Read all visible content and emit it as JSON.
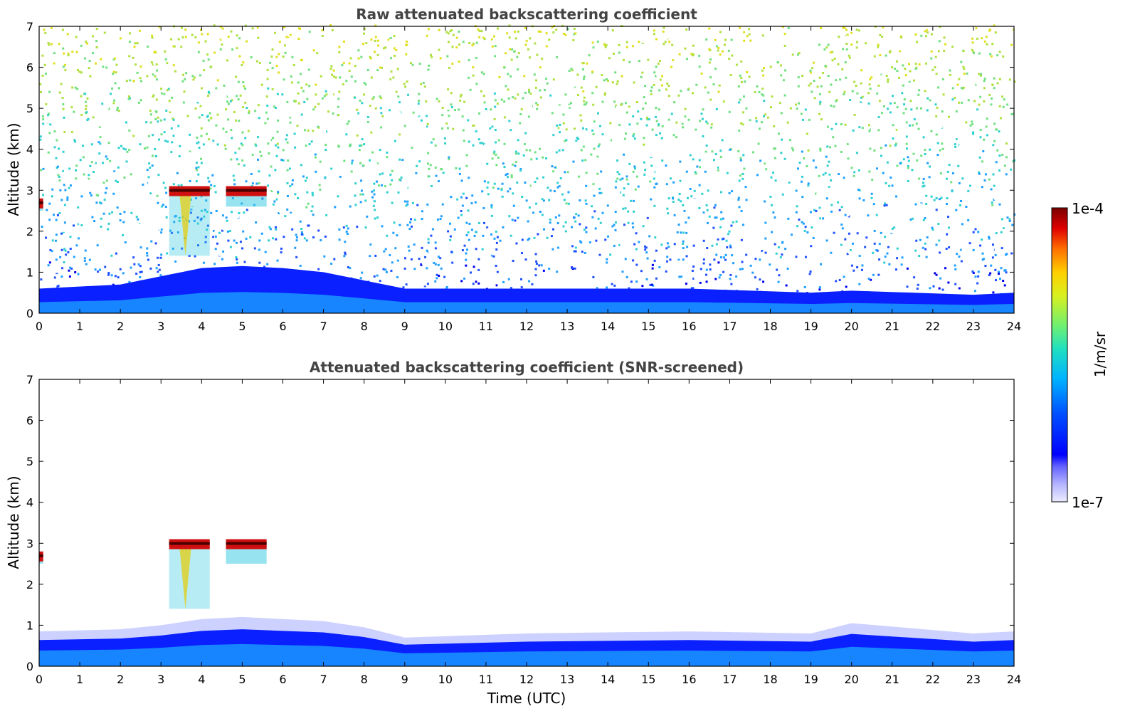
{
  "chart_data": [
    {
      "type": "heatmap",
      "title": "Raw attenuated backscattering coefficient",
      "xlabel": "",
      "ylabel": "Altitude (km)",
      "xlim": [
        0,
        24
      ],
      "ylim": [
        0,
        7
      ],
      "x_ticks": [
        "0",
        "1",
        "2",
        "3",
        "4",
        "5",
        "6",
        "7",
        "8",
        "9",
        "10",
        "11",
        "12",
        "13",
        "14",
        "15",
        "16",
        "17",
        "18",
        "19",
        "20",
        "21",
        "22",
        "23",
        "24"
      ],
      "y_ticks": [
        "0",
        "1",
        "2",
        "3",
        "4",
        "5",
        "6",
        "7"
      ],
      "boundary_layer_top_km": [
        {
          "x": 0,
          "y": 0.6
        },
        {
          "x": 2,
          "y": 0.7
        },
        {
          "x": 3,
          "y": 0.9
        },
        {
          "x": 4,
          "y": 1.1
        },
        {
          "x": 5,
          "y": 1.15
        },
        {
          "x": 6,
          "y": 1.1
        },
        {
          "x": 7,
          "y": 1.0
        },
        {
          "x": 8,
          "y": 0.8
        },
        {
          "x": 9,
          "y": 0.6
        },
        {
          "x": 12,
          "y": 0.6
        },
        {
          "x": 16,
          "y": 0.6
        },
        {
          "x": 19,
          "y": 0.5
        },
        {
          "x": 20,
          "y": 0.55
        },
        {
          "x": 23,
          "y": 0.45
        },
        {
          "x": 24,
          "y": 0.5
        }
      ],
      "cloud_features": [
        {
          "x_range": [
            3.2,
            4.2
          ],
          "y_range": [
            1.4,
            3.1
          ],
          "intensity": "high"
        },
        {
          "x_range": [
            4.6,
            5.6
          ],
          "y_range": [
            2.6,
            3.1
          ],
          "intensity": "high"
        },
        {
          "x_range": [
            0.0,
            0.1
          ],
          "y_range": [
            2.5,
            2.8
          ],
          "intensity": "high"
        }
      ],
      "noise": "increasing with altitude"
    },
    {
      "type": "heatmap",
      "title": "Attenuated backscattering coefficient (SNR-screened)",
      "xlabel": "Time (UTC)",
      "ylabel": "Altitude (km)",
      "xlim": [
        0,
        24
      ],
      "ylim": [
        0,
        7
      ],
      "x_ticks": [
        "0",
        "1",
        "2",
        "3",
        "4",
        "5",
        "6",
        "7",
        "8",
        "9",
        "10",
        "11",
        "12",
        "13",
        "14",
        "15",
        "16",
        "17",
        "18",
        "19",
        "20",
        "21",
        "22",
        "23",
        "24"
      ],
      "y_ticks": [
        "0",
        "1",
        "2",
        "3",
        "4",
        "5",
        "6",
        "7"
      ],
      "boundary_layer_top_km": [
        {
          "x": 0,
          "y": 0.85
        },
        {
          "x": 2,
          "y": 0.9
        },
        {
          "x": 3,
          "y": 1.0
        },
        {
          "x": 4,
          "y": 1.15
        },
        {
          "x": 5,
          "y": 1.2
        },
        {
          "x": 6,
          "y": 1.15
        },
        {
          "x": 7,
          "y": 1.1
        },
        {
          "x": 8,
          "y": 0.95
        },
        {
          "x": 9,
          "y": 0.7
        },
        {
          "x": 12,
          "y": 0.8
        },
        {
          "x": 16,
          "y": 0.85
        },
        {
          "x": 19,
          "y": 0.8
        },
        {
          "x": 20,
          "y": 1.05
        },
        {
          "x": 23,
          "y": 0.8
        },
        {
          "x": 24,
          "y": 0.85
        }
      ],
      "cloud_features": [
        {
          "x_range": [
            3.2,
            4.2
          ],
          "y_range": [
            1.4,
            3.1
          ],
          "intensity": "high"
        },
        {
          "x_range": [
            4.6,
            5.6
          ],
          "y_range": [
            2.5,
            3.1
          ],
          "intensity": "high"
        },
        {
          "x_range": [
            0.0,
            0.1
          ],
          "y_range": [
            2.5,
            2.8
          ],
          "intensity": "high"
        }
      ],
      "noise": "screened"
    }
  ],
  "colorbar": {
    "label": "1/m/sr",
    "max_label": "1e-4",
    "min_label": "1e-7",
    "scale": "log",
    "colormap": "jet"
  }
}
